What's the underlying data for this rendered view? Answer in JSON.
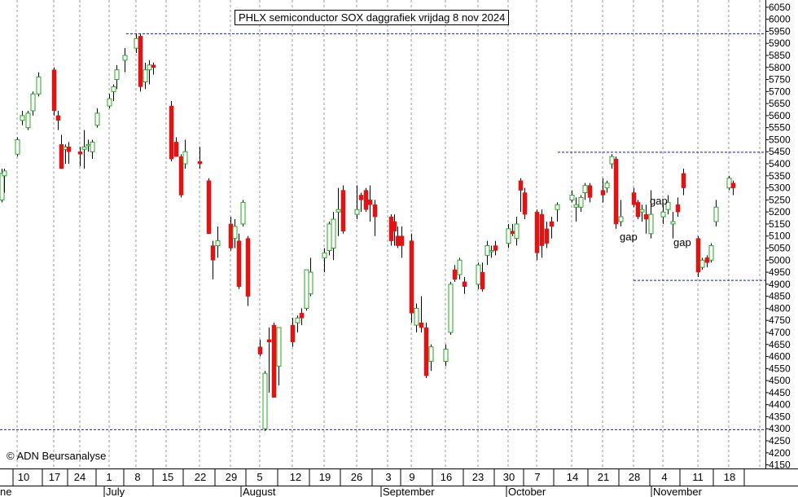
{
  "title": "PHLX semiconductor SOX daggrafiek vrijdag 8 nov 2024",
  "credit": "© ADN Beursanalyse",
  "colors": {
    "up": "#22a822",
    "down": "#e31313",
    "wick": "#000000",
    "grid": "#9a9a9a",
    "reference_line": "#1a1aa8"
  },
  "chart_data": {
    "type": "candlestick",
    "title": "PHLX semiconductor SOX daggrafiek vrijdag 8 nov 2024",
    "y_axis": {
      "position": "right",
      "ylim": [
        4135,
        6080
      ],
      "ticks": [
        4150,
        4200,
        4250,
        4300,
        4350,
        4400,
        4450,
        4500,
        4550,
        4600,
        4650,
        4700,
        4750,
        4800,
        4850,
        4900,
        4950,
        5000,
        5050,
        5100,
        5150,
        5200,
        5250,
        5300,
        5350,
        5400,
        5450,
        5500,
        5550,
        5600,
        5650,
        5700,
        5750,
        5800,
        5850,
        5900,
        5950,
        6000,
        6050
      ]
    },
    "x_axis": {
      "day_labels": [
        "10",
        "17",
        "24",
        "1",
        "8",
        "15",
        "22",
        "29",
        "5",
        "12",
        "19",
        "26",
        "3",
        "9",
        "16",
        "23",
        "30",
        "7",
        "14",
        "21",
        "28",
        "4",
        "11",
        "18"
      ],
      "month_labels": [
        "July",
        "August",
        "September",
        "October",
        "November"
      ],
      "partial_month_label": "ne",
      "grid": "vertical dashed at weekly day labels"
    },
    "reference_lines": [
      5940,
      5448,
      4916,
      4296
    ],
    "annotations": [
      "gap",
      "gap",
      "gap"
    ],
    "candles": [
      {
        "date": "2024-06-03",
        "open": 5340,
        "high": 5360,
        "low": 5300,
        "close": 5310
      },
      {
        "date": "2024-06-04",
        "open": 5250,
        "high": 5380,
        "low": 5240,
        "close": 5360
      },
      {
        "date": "2024-06-05",
        "open": 5350,
        "high": 5380,
        "low": 5280,
        "close": 5370
      },
      {
        "date": "2024-06-10",
        "open": 5440,
        "high": 5510,
        "low": 5430,
        "close": 5500
      },
      {
        "date": "2024-06-11",
        "open": 5580,
        "high": 5620,
        "low": 5560,
        "close": 5600
      },
      {
        "date": "2024-06-12",
        "open": 5550,
        "high": 5620,
        "low": 5540,
        "close": 5610
      },
      {
        "date": "2024-06-13",
        "open": 5620,
        "high": 5700,
        "low": 5600,
        "close": 5690
      },
      {
        "date": "2024-06-14",
        "open": 5690,
        "high": 5780,
        "low": 5680,
        "close": 5760
      },
      {
        "date": "2024-06-17",
        "open": 5790,
        "high": 5800,
        "low": 5600,
        "close": 5620
      },
      {
        "date": "2024-06-18",
        "open": 5600,
        "high": 5620,
        "low": 5540,
        "close": 5580
      },
      {
        "date": "2024-06-19",
        "open": 5480,
        "high": 5520,
        "low": 5380,
        "close": 5380
      },
      {
        "date": "2024-06-20",
        "open": 5460,
        "high": 5480,
        "low": 5400,
        "close": 5470
      },
      {
        "date": "2024-06-21",
        "open": 5470,
        "high": 5490,
        "low": 5400,
        "close": 5450
      },
      {
        "date": "2024-06-24",
        "open": 5450,
        "high": 5470,
        "low": 5390,
        "close": 5440
      },
      {
        "date": "2024-06-25",
        "open": 5460,
        "high": 5540,
        "low": 5380,
        "close": 5470
      },
      {
        "date": "2024-06-26",
        "open": 5480,
        "high": 5500,
        "low": 5450,
        "close": 5480
      },
      {
        "date": "2024-06-27",
        "open": 5450,
        "high": 5500,
        "low": 5420,
        "close": 5490
      },
      {
        "date": "2024-06-28",
        "open": 5560,
        "high": 5630,
        "low": 5550,
        "close": 5610
      },
      {
        "date": "2024-07-01",
        "open": 5640,
        "high": 5690,
        "low": 5630,
        "close": 5670
      },
      {
        "date": "2024-07-02",
        "open": 5700,
        "high": 5730,
        "low": 5660,
        "close": 5720
      },
      {
        "date": "2024-07-03",
        "open": 5750,
        "high": 5810,
        "low": 5710,
        "close": 5790
      },
      {
        "date": "2024-07-05",
        "open": 5830,
        "high": 5880,
        "low": 5780,
        "close": 5850
      },
      {
        "date": "2024-07-08",
        "open": 5880,
        "high": 5940,
        "low": 5860,
        "close": 5920
      },
      {
        "date": "2024-07-09",
        "open": 5930,
        "high": 5940,
        "low": 5700,
        "close": 5720
      },
      {
        "date": "2024-07-10",
        "open": 5740,
        "high": 5820,
        "low": 5710,
        "close": 5790
      },
      {
        "date": "2024-07-11",
        "open": 5790,
        "high": 5830,
        "low": 5730,
        "close": 5810
      },
      {
        "date": "2024-07-12",
        "open": 5810,
        "high": 5820,
        "low": 5770,
        "close": 5800
      },
      {
        "date": "2024-07-16",
        "open": 5640,
        "high": 5660,
        "low": 5410,
        "close": 5420
      },
      {
        "date": "2024-07-17",
        "open": 5490,
        "high": 5510,
        "low": 5430,
        "close": 5430
      },
      {
        "date": "2024-07-18",
        "open": 5430,
        "high": 5440,
        "low": 5260,
        "close": 5270
      },
      {
        "date": "2024-07-19",
        "open": 5400,
        "high": 5500,
        "low": 5380,
        "close": 5450
      },
      {
        "date": "2024-07-22",
        "open": 5410,
        "high": 5470,
        "low": 5380,
        "close": 5400
      },
      {
        "date": "2024-07-24",
        "open": 5330,
        "high": 5340,
        "low": 5110,
        "close": 5110
      },
      {
        "date": "2024-07-25",
        "open": 5060,
        "high": 5080,
        "low": 4920,
        "close": 5000
      },
      {
        "date": "2024-07-26",
        "open": 5060,
        "high": 5140,
        "low": 5010,
        "close": 5080
      },
      {
        "date": "2024-07-29",
        "open": 5150,
        "high": 5180,
        "low": 5040,
        "close": 5050
      },
      {
        "date": "2024-07-30",
        "open": 5090,
        "high": 5170,
        "low": 5050,
        "close": 5140
      },
      {
        "date": "2024-07-31",
        "open": 5080,
        "high": 5110,
        "low": 4880,
        "close": 4890
      },
      {
        "date": "2024-08-01",
        "open": 5150,
        "high": 5250,
        "low": 5140,
        "close": 5240
      },
      {
        "date": "2024-08-02",
        "open": 5090,
        "high": 5100,
        "low": 4810,
        "close": 4850
      },
      {
        "date": "2024-08-05",
        "open": 4640,
        "high": 4670,
        "low": 4600,
        "close": 4610
      },
      {
        "date": "2024-08-06",
        "open": 4300,
        "high": 4540,
        "low": 4290,
        "close": 4530
      },
      {
        "date": "2024-08-07",
        "open": 4670,
        "high": 4720,
        "low": 4450,
        "close": 4660
      },
      {
        "date": "2024-08-08",
        "open": 4730,
        "high": 4740,
        "low": 4430,
        "close": 4430
      },
      {
        "date": "2024-08-09",
        "open": 4560,
        "high": 4720,
        "low": 4480,
        "close": 4720
      },
      {
        "date": "2024-08-12",
        "open": 4730,
        "high": 4760,
        "low": 4640,
        "close": 4660
      },
      {
        "date": "2024-08-13",
        "open": 4740,
        "high": 4770,
        "low": 4700,
        "close": 4760
      },
      {
        "date": "2024-08-14",
        "open": 4780,
        "high": 4800,
        "low": 4730,
        "close": 4760
      },
      {
        "date": "2024-08-15",
        "open": 4800,
        "high": 4960,
        "low": 4790,
        "close": 4960
      },
      {
        "date": "2024-08-16",
        "open": 4860,
        "high": 5010,
        "low": 4850,
        "close": 4950
      },
      {
        "date": "2024-08-19",
        "open": 5010,
        "high": 5050,
        "low": 4950,
        "close": 5030
      },
      {
        "date": "2024-08-20",
        "open": 5040,
        "high": 5160,
        "low": 5020,
        "close": 5150
      },
      {
        "date": "2024-08-21",
        "open": 5050,
        "high": 5200,
        "low": 5000,
        "close": 5170
      },
      {
        "date": "2024-08-22",
        "open": 5200,
        "high": 5300,
        "low": 5100,
        "close": 5210
      },
      {
        "date": "2024-08-23",
        "open": 5290,
        "high": 5310,
        "low": 5110,
        "close": 5120
      },
      {
        "date": "2024-08-26",
        "open": 5190,
        "high": 5310,
        "low": 5170,
        "close": 5210
      },
      {
        "date": "2024-08-27",
        "open": 5270,
        "high": 5280,
        "low": 5200,
        "close": 5250
      },
      {
        "date": "2024-08-28",
        "open": 5290,
        "high": 5300,
        "low": 5200,
        "close": 5210
      },
      {
        "date": "2024-08-29",
        "open": 5250,
        "high": 5310,
        "low": 5160,
        "close": 5230
      },
      {
        "date": "2024-08-30",
        "open": 5230,
        "high": 5250,
        "low": 5100,
        "close": 5180
      },
      {
        "date": "2024-09-03",
        "open": 5180,
        "high": 5190,
        "low": 5060,
        "close": 5080
      },
      {
        "date": "2024-09-04",
        "open": 5160,
        "high": 5190,
        "low": 5060,
        "close": 5120
      },
      {
        "date": "2024-09-05",
        "open": 5100,
        "high": 5140,
        "low": 5050,
        "close": 5060
      },
      {
        "date": "2024-09-06",
        "open": 5100,
        "high": 5140,
        "low": 5010,
        "close": 5060
      },
      {
        "date": "2024-09-09",
        "open": 5080,
        "high": 5110,
        "low": 4740,
        "close": 4780
      },
      {
        "date": "2024-09-10",
        "open": 4730,
        "high": 4820,
        "low": 4700,
        "close": 4800
      },
      {
        "date": "2024-09-11",
        "open": 4740,
        "high": 4850,
        "low": 4700,
        "close": 4720
      },
      {
        "date": "2024-09-12",
        "open": 4720,
        "high": 4740,
        "low": 4510,
        "close": 4520
      },
      {
        "date": "2024-09-13",
        "open": 4580,
        "high": 4650,
        "low": 4540,
        "close": 4640
      },
      {
        "date": "2024-09-16",
        "open": 4580,
        "high": 4650,
        "low": 4560,
        "close": 4630
      },
      {
        "date": "2024-09-17",
        "open": 4700,
        "high": 4910,
        "low": 4690,
        "close": 4900
      },
      {
        "date": "2024-09-18",
        "open": 4960,
        "high": 4980,
        "low": 4910,
        "close": 4920
      },
      {
        "date": "2024-09-19",
        "open": 4940,
        "high": 5010,
        "low": 4920,
        "close": 5000
      },
      {
        "date": "2024-09-20",
        "open": 4910,
        "high": 4930,
        "low": 4860,
        "close": 4890
      },
      {
        "date": "2024-09-23",
        "open": 4900,
        "high": 4990,
        "low": 4880,
        "close": 4980
      },
      {
        "date": "2024-09-24",
        "open": 4950,
        "high": 4990,
        "low": 4870,
        "close": 4880
      },
      {
        "date": "2024-09-25",
        "open": 5020,
        "high": 5080,
        "low": 4980,
        "close": 5060
      },
      {
        "date": "2024-09-26",
        "open": 5040,
        "high": 5060,
        "low": 5010,
        "close": 5040
      },
      {
        "date": "2024-09-27",
        "open": 5060,
        "high": 5080,
        "low": 5020,
        "close": 5040
      },
      {
        "date": "2024-09-30",
        "open": 5070,
        "high": 5150,
        "low": 5050,
        "close": 5130
      },
      {
        "date": "2024-10-01",
        "open": 5120,
        "high": 5150,
        "low": 5100,
        "close": 5110
      },
      {
        "date": "2024-10-02",
        "open": 5090,
        "high": 5180,
        "low": 5060,
        "close": 5150
      },
      {
        "date": "2024-10-03",
        "open": 5330,
        "high": 5340,
        "low": 5200,
        "close": 5290
      },
      {
        "date": "2024-10-04",
        "open": 5280,
        "high": 5300,
        "low": 5170,
        "close": 5190
      },
      {
        "date": "2024-10-07",
        "open": 5200,
        "high": 5210,
        "low": 5000,
        "close": 5030
      },
      {
        "date": "2024-10-08",
        "open": 5190,
        "high": 5210,
        "low": 5010,
        "close": 5060
      },
      {
        "date": "2024-10-09",
        "open": 5130,
        "high": 5160,
        "low": 5050,
        "close": 5070
      },
      {
        "date": "2024-10-10",
        "open": 5160,
        "high": 5180,
        "low": 5090,
        "close": 5140
      },
      {
        "date": "2024-10-11",
        "open": 5210,
        "high": 5240,
        "low": 5160,
        "close": 5230
      },
      {
        "date": "2024-10-14",
        "open": 5250,
        "high": 5290,
        "low": 5240,
        "close": 5270
      },
      {
        "date": "2024-10-15",
        "open": 5220,
        "high": 5260,
        "low": 5160,
        "close": 5230
      },
      {
        "date": "2024-10-16",
        "open": 5220,
        "high": 5270,
        "low": 5200,
        "close": 5260
      },
      {
        "date": "2024-10-17",
        "open": 5280,
        "high": 5320,
        "low": 5250,
        "close": 5310
      },
      {
        "date": "2024-10-18",
        "open": 5310,
        "high": 5320,
        "low": 5240,
        "close": 5260
      },
      {
        "date": "2024-10-21",
        "open": 5290,
        "high": 5340,
        "low": 5240,
        "close": 5270
      },
      {
        "date": "2024-10-22",
        "open": 5300,
        "high": 5330,
        "low": 5280,
        "close": 5320
      },
      {
        "date": "2024-10-23",
        "open": 5400,
        "high": 5440,
        "low": 5380,
        "close": 5430
      },
      {
        "date": "2024-10-24",
        "open": 5420,
        "high": 5430,
        "low": 5130,
        "close": 5150
      },
      {
        "date": "2024-10-25",
        "open": 5160,
        "high": 5250,
        "low": 5140,
        "close": 5180
      },
      {
        "date": "2024-10-28",
        "open": 5280,
        "high": 5300,
        "low": 5220,
        "close": 5230
      },
      {
        "date": "2024-10-29",
        "open": 5240,
        "high": 5250,
        "low": 5170,
        "close": 5180
      },
      {
        "date": "2024-10-30",
        "open": 5200,
        "high": 5230,
        "low": 5160,
        "close": 5210
      },
      {
        "date": "2024-10-31",
        "open": 5190,
        "high": 5230,
        "low": 5110,
        "close": 5170
      },
      {
        "date": "2024-11-01",
        "open": 5110,
        "high": 5290,
        "low": 5090,
        "close": 5190
      },
      {
        "date": "2024-11-04",
        "open": 5180,
        "high": 5230,
        "low": 5150,
        "close": 5200
      },
      {
        "date": "2024-11-05",
        "open": 5210,
        "high": 5270,
        "low": 5190,
        "close": 5240
      },
      {
        "date": "2024-11-06",
        "open": 5150,
        "high": 5200,
        "low": 5090,
        "close": 5160
      },
      {
        "date": "2024-11-07",
        "open": 5230,
        "high": 5260,
        "low": 5180,
        "close": 5200
      },
      {
        "date": "2024-11-08",
        "open": 5360,
        "high": 5380,
        "low": 5270,
        "close": 5300
      },
      {
        "date": "2024-11-11",
        "open": 5090,
        "high": 5100,
        "low": 4930,
        "close": 4950
      },
      {
        "date": "2024-11-12",
        "open": 4970,
        "high": 5010,
        "low": 4960,
        "close": 5000
      },
      {
        "date": "2024-11-13",
        "open": 5010,
        "high": 5020,
        "low": 4970,
        "close": 4990
      },
      {
        "date": "2024-11-14",
        "open": 5000,
        "high": 5070,
        "low": 4990,
        "close": 5060
      },
      {
        "date": "2024-11-15",
        "open": 5160,
        "high": 5250,
        "low": 5140,
        "close": 5220
      },
      {
        "date": "2024-11-18",
        "open": 5300,
        "high": 5350,
        "low": 5290,
        "close": 5340
      },
      {
        "date": "2024-11-19",
        "open": 5320,
        "high": 5330,
        "low": 5270,
        "close": 5300
      }
    ]
  }
}
